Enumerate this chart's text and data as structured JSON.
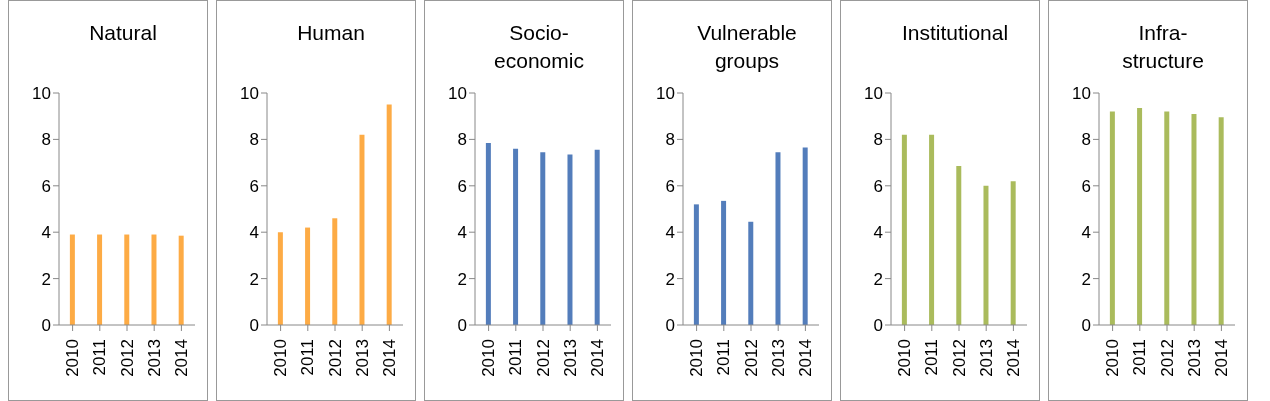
{
  "chart_data": [
    {
      "type": "bar",
      "title": "Natural",
      "categories": [
        "2010",
        "2011",
        "2012",
        "2013",
        "2014"
      ],
      "values": [
        3.9,
        3.9,
        3.9,
        3.9,
        3.85
      ],
      "color": "#fdab45",
      "ylim": [
        0,
        10
      ],
      "yticks": [
        0,
        2,
        4,
        6,
        8,
        10
      ]
    },
    {
      "type": "bar",
      "title": "Human",
      "categories": [
        "2010",
        "2011",
        "2012",
        "2013",
        "2014"
      ],
      "values": [
        4.0,
        4.2,
        4.6,
        8.2,
        9.5
      ],
      "color": "#fdab45",
      "ylim": [
        0,
        10
      ],
      "yticks": [
        0,
        2,
        4,
        6,
        8,
        10
      ]
    },
    {
      "type": "bar",
      "title": "Socio-\neconomic",
      "categories": [
        "2010",
        "2011",
        "2012",
        "2013",
        "2014"
      ],
      "values": [
        7.85,
        7.6,
        7.45,
        7.35,
        7.55
      ],
      "color": "#537dbb",
      "ylim": [
        0,
        10
      ],
      "yticks": [
        0,
        2,
        4,
        6,
        8,
        10
      ]
    },
    {
      "type": "bar",
      "title": "Vulnerable\ngroups",
      "categories": [
        "2010",
        "2011",
        "2012",
        "2013",
        "2014"
      ],
      "values": [
        5.2,
        5.35,
        4.45,
        7.45,
        7.65
      ],
      "color": "#537dbb",
      "ylim": [
        0,
        10
      ],
      "yticks": [
        0,
        2,
        4,
        6,
        8,
        10
      ]
    },
    {
      "type": "bar",
      "title": "Institutional",
      "categories": [
        "2010",
        "2011",
        "2012",
        "2013",
        "2014"
      ],
      "values": [
        8.2,
        8.2,
        6.85,
        6.0,
        6.2
      ],
      "color": "#aabb5c",
      "ylim": [
        0,
        10
      ],
      "yticks": [
        0,
        2,
        4,
        6,
        8,
        10
      ]
    },
    {
      "type": "bar",
      "title": "Infra-\nstructure",
      "categories": [
        "2010",
        "2011",
        "2012",
        "2013",
        "2014"
      ],
      "values": [
        9.2,
        9.35,
        9.2,
        9.1,
        8.95
      ],
      "color": "#aabb5c",
      "ylim": [
        0,
        10
      ],
      "yticks": [
        0,
        2,
        4,
        6,
        8,
        10
      ]
    }
  ]
}
